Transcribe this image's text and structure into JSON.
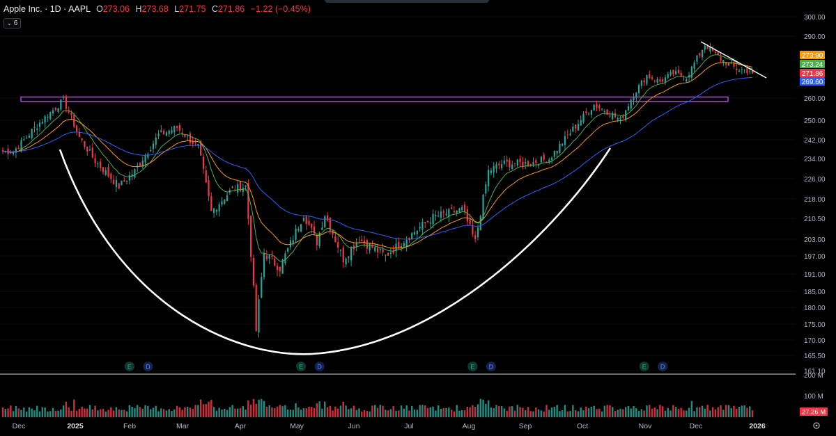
{
  "header": {
    "title": "Apple Inc. · 1D · AAPL",
    "open_label": "O",
    "open": "273.06",
    "high_label": "H",
    "high": "273.68",
    "low_label": "L",
    "low": "271.75",
    "close_label": "C",
    "close": "271.86",
    "change": "−1.22 (−0.45%)",
    "indicator_count": "6"
  },
  "colors": {
    "up": "#26a69a",
    "down": "#f23645",
    "background": "#000000",
    "ema_fast": "#4caf50",
    "ema_mid": "#ff9800",
    "ema_slow": "#2962ff",
    "resistance_box": "#b03ad6",
    "cup_curve": "#ffffff"
  },
  "chart_data": {
    "type": "candlestick",
    "symbol": "AAPL",
    "interval": "1D",
    "y_axis_ticks": [
      "300.00",
      "290.00",
      "260.00",
      "250.00",
      "242.00",
      "234.00",
      "226.00",
      "218.00",
      "210.50",
      "203.00",
      "197.00",
      "191.00",
      "185.00",
      "180.00",
      "175.00",
      "170.00",
      "165.50",
      "161.10"
    ],
    "x_axis_labels": [
      "Dec",
      "2025",
      "Feb",
      "Mar",
      "Apr",
      "May",
      "Jun",
      "Jul",
      "Aug",
      "Sep",
      "Oct",
      "Nov",
      "Dec",
      "2026"
    ],
    "ylim": [
      161.1,
      300
    ],
    "price_anchors": [
      {
        "date": "2024-11-29",
        "price": 237
      },
      {
        "date": "2024-12-12",
        "price": 248
      },
      {
        "date": "2024-12-26",
        "price": 259
      },
      {
        "date": "2025-01-03",
        "price": 243
      },
      {
        "date": "2025-01-13",
        "price": 233
      },
      {
        "date": "2025-01-24",
        "price": 223
      },
      {
        "date": "2025-02-03",
        "price": 229
      },
      {
        "date": "2025-02-14",
        "price": 244
      },
      {
        "date": "2025-02-25",
        "price": 247
      },
      {
        "date": "2025-03-07",
        "price": 239
      },
      {
        "date": "2025-03-14",
        "price": 213
      },
      {
        "date": "2025-03-26",
        "price": 222
      },
      {
        "date": "2025-04-02",
        "price": 223
      },
      {
        "date": "2025-04-08",
        "price": 173
      },
      {
        "date": "2025-04-11",
        "price": 198
      },
      {
        "date": "2025-04-21",
        "price": 193
      },
      {
        "date": "2025-05-02",
        "price": 212
      },
      {
        "date": "2025-05-09",
        "price": 202
      },
      {
        "date": "2025-05-14",
        "price": 212
      },
      {
        "date": "2025-05-23",
        "price": 196
      },
      {
        "date": "2025-06-02",
        "price": 203
      },
      {
        "date": "2025-06-16",
        "price": 197
      },
      {
        "date": "2025-06-30",
        "price": 205
      },
      {
        "date": "2025-07-10",
        "price": 211
      },
      {
        "date": "2025-07-25",
        "price": 214
      },
      {
        "date": "2025-08-01",
        "price": 202
      },
      {
        "date": "2025-08-08",
        "price": 229
      },
      {
        "date": "2025-08-15",
        "price": 232
      },
      {
        "date": "2025-08-29",
        "price": 232
      },
      {
        "date": "2025-09-10",
        "price": 234
      },
      {
        "date": "2025-09-22",
        "price": 245
      },
      {
        "date": "2025-10-03",
        "price": 257
      },
      {
        "date": "2025-10-10",
        "price": 254
      },
      {
        "date": "2025-10-17",
        "price": 250
      },
      {
        "date": "2025-10-24",
        "price": 262
      },
      {
        "date": "2025-10-31",
        "price": 271
      },
      {
        "date": "2025-11-07",
        "price": 268
      },
      {
        "date": "2025-11-14",
        "price": 272
      },
      {
        "date": "2025-11-21",
        "price": 270
      },
      {
        "date": "2025-12-02",
        "price": 286
      },
      {
        "date": "2025-12-10",
        "price": 279
      },
      {
        "date": "2025-12-18",
        "price": 274
      },
      {
        "date": "2025-12-26",
        "price": 273
      }
    ],
    "last_prices": [
      {
        "name": "ema_mid",
        "value": "273.90",
        "color": "#ff9800"
      },
      {
        "name": "ema_fast",
        "value": "273.24",
        "color": "#4caf50"
      },
      {
        "name": "close",
        "value": "271.86",
        "color": "#f23645"
      },
      {
        "name": "ema_slow",
        "value": "269.60",
        "color": "#2962ff"
      }
    ],
    "resistance_zone": [
      258.5,
      260.5
    ],
    "event_markers": [
      {
        "date": "2025-01-30",
        "label": "E"
      },
      {
        "date": "2025-02-10",
        "label": "D"
      },
      {
        "date": "2025-05-01",
        "label": "E"
      },
      {
        "date": "2025-05-12",
        "label": "D"
      },
      {
        "date": "2025-07-31",
        "label": "E"
      },
      {
        "date": "2025-08-11",
        "label": "D"
      },
      {
        "date": "2025-10-30",
        "label": "E"
      },
      {
        "date": "2025-11-10",
        "label": "D"
      }
    ],
    "volume_ticks": [
      "200 M",
      "100 M"
    ],
    "volume_last": "27.26 M"
  }
}
